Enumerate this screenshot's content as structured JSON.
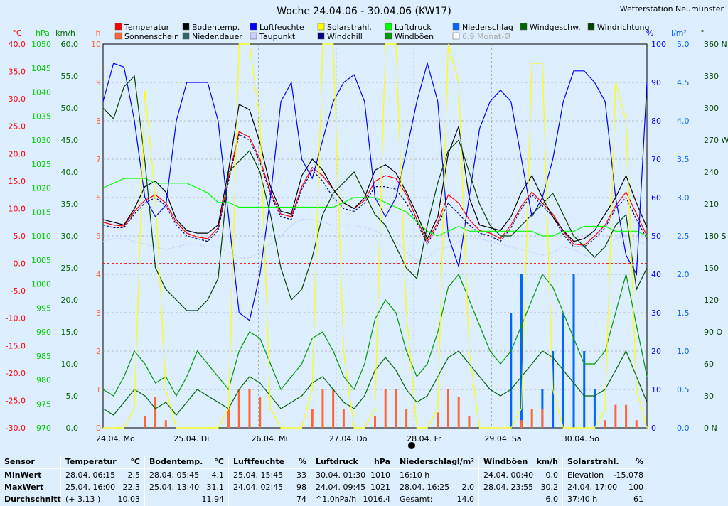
{
  "title": "Woche 24.04.06 - 30.04.06 (KW17)",
  "station": "Wetterstation Neumünster",
  "legend": [
    {
      "label": "Temperatur",
      "color": "#ff0000"
    },
    {
      "label": "Bodentemp.",
      "color": "#000000"
    },
    {
      "label": "Luftfeuchte",
      "color": "#0000ff"
    },
    {
      "label": "Solarstrahl.",
      "color": "#ffff00"
    },
    {
      "label": "Luftdruck",
      "color": "#00ff00"
    },
    {
      "label": "Niederschlag",
      "color": "#0066ff"
    },
    {
      "label": "Windgeschw.",
      "color": "#006600"
    },
    {
      "label": "Windrichtung",
      "color": "#004400"
    },
    {
      "label": "Sonnenschein",
      "color": "#ff6633"
    },
    {
      "label": "Nieder.dauer",
      "color": "#336666"
    },
    {
      "label": "Taupunkt",
      "color": "#ccccff"
    },
    {
      "label": "Windchill",
      "color": "#000080"
    },
    {
      "label": "Windböen",
      "color": "#009900"
    },
    {
      "label": "6.9 Monat-Ø",
      "color": "#ffffff"
    }
  ],
  "axes": {
    "temp": {
      "unit": "°C",
      "color": "#ff0000",
      "ticks": [
        "40.0",
        "35.0",
        "30.0",
        "25.0",
        "20.0",
        "15.0",
        "10.0",
        "5.0",
        "0.0",
        "-5.0",
        "-10.0",
        "-15.0",
        "-20.0",
        "-25.0",
        "-30.0"
      ]
    },
    "press": {
      "unit": "hPa",
      "color": "#00cc00",
      "ticks": [
        "1050",
        "1045",
        "1040",
        "1035",
        "1030",
        "1025",
        "1020",
        "1015",
        "1010",
        "1005",
        "1000",
        "995",
        "990",
        "985",
        "980",
        "975",
        "970"
      ]
    },
    "wind": {
      "unit": "km/h",
      "color": "#006600",
      "ticks": [
        "60.0",
        "55.0",
        "50.0",
        "45.0",
        "40.0",
        "35.0",
        "30.0",
        "25.0",
        "20.0",
        "15.0",
        "10.0",
        "5.0",
        "0.0"
      ]
    },
    "hours": {
      "unit": "h",
      "color": "#ff6633",
      "ticks": [
        "10",
        "9",
        "8",
        "7",
        "6",
        "5",
        "4",
        "3",
        "2",
        "1",
        "0"
      ]
    },
    "humid": {
      "unit": "%",
      "color": "#0000ff",
      "ticks": [
        "100",
        "90",
        "80",
        "70",
        "60",
        "50",
        "40",
        "30",
        "20",
        "10",
        "0"
      ]
    },
    "rain": {
      "unit": "l/m²",
      "color": "#0066ff",
      "ticks": [
        "5.0",
        "4.5",
        "4.0",
        "3.5",
        "3.0",
        "2.5",
        "2.0",
        "1.5",
        "1.0",
        "0.5",
        "0.0"
      ]
    },
    "dir": {
      "unit": "°",
      "color": "#004400",
      "ticks": [
        "360 N",
        "330",
        "300",
        "270 W",
        "240",
        "210",
        "180 S",
        "150",
        "120",
        "90 O",
        "60",
        "30",
        "0 N"
      ]
    }
  },
  "chart_data": {
    "type": "line",
    "title": "Woche 24.04.06 - 30.04.06 (KW17)",
    "x_labels": [
      "24.04. Mo",
      "25.04. Di",
      "26.04. Mi",
      "27.04. Do",
      "28.04. Fr",
      "29.04. Sa",
      "30.04. So"
    ],
    "temp_range": [
      -30,
      40
    ],
    "pressure_range": [
      970,
      1050
    ],
    "wind_range": [
      0,
      60
    ],
    "humidity_range": [
      0,
      100
    ],
    "rain_range": [
      0,
      5
    ],
    "direction_range": [
      0,
      360
    ],
    "hours_range": [
      0,
      10
    ],
    "series": [
      {
        "name": "Temperatur",
        "color": "#ff0000",
        "values": [
          7.5,
          7.0,
          6.8,
          9.5,
          11.5,
          12.5,
          11.0,
          7.5,
          5.5,
          4.8,
          4.5,
          6.5,
          15.5,
          24.0,
          23.0,
          19.0,
          13.0,
          9.0,
          8.5,
          14.0,
          17.5,
          16.0,
          13.5,
          11.0,
          10.0,
          11.5,
          15.0,
          16.0,
          15.5,
          12.5,
          8.0,
          4.0,
          7.5,
          12.5,
          11.0,
          8.0,
          6.0,
          5.5,
          4.5,
          7.0,
          10.5,
          13.0,
          11.0,
          9.0,
          5.8,
          3.5,
          3.3,
          5.0,
          7.0,
          10.5,
          13.0,
          9.0,
          5.0
        ]
      },
      {
        "name": "Windchill",
        "color": "#000080",
        "values": [
          7.0,
          6.5,
          6.5,
          9.0,
          11.0,
          12.0,
          10.5,
          7.0,
          5.0,
          4.5,
          4.0,
          6.0,
          15.0,
          23.5,
          22.5,
          18.5,
          12.5,
          8.5,
          8.0,
          13.5,
          17.0,
          15.0,
          12.0,
          10.0,
          9.5,
          11.0,
          14.0,
          14.0,
          13.5,
          11.0,
          7.5,
          3.5,
          7.0,
          11.0,
          9.0,
          7.0,
          5.5,
          5.0,
          4.0,
          6.5,
          10.0,
          12.5,
          10.5,
          8.5,
          5.3,
          3.0,
          3.0,
          4.5,
          6.5,
          10.0,
          12.0,
          8.0,
          4.5
        ]
      },
      {
        "name": "Bodentemp.",
        "color": "#000000",
        "values": [
          8.0,
          7.5,
          7.0,
          10.0,
          14.0,
          15.0,
          13.0,
          8.0,
          6.0,
          5.5,
          5.5,
          7.0,
          17.0,
          29.0,
          28.0,
          22.0,
          14.0,
          9.5,
          9.0,
          16.0,
          19.0,
          17.0,
          13.5,
          11.0,
          10.0,
          12.0,
          17.0,
          18.0,
          16.5,
          13.0,
          9.0,
          4.5,
          8.5,
          20.0,
          25.0,
          12.0,
          7.0,
          6.5,
          6.0,
          8.5,
          13.0,
          16.0,
          12.0,
          8.5,
          6.0,
          4.0,
          4.5,
          6.0,
          9.0,
          12.0,
          16.0,
          11.0,
          6.5
        ]
      },
      {
        "name": "Taupunkt",
        "color": "#ccccff",
        "values": [
          4.0,
          4.5,
          4.5,
          4.0,
          3.5,
          3.0,
          2.5,
          3.0,
          3.5,
          3.5,
          3.0,
          3.0,
          2.0,
          1.0,
          1.0,
          2.0,
          3.5,
          5.0,
          7.0,
          8.0,
          8.0,
          7.5,
          7.0,
          7.0,
          7.0,
          6.5,
          6.0,
          5.0,
          4.0,
          2.0,
          0.5,
          1.0,
          2.5,
          3.0,
          4.0,
          4.5,
          4.5,
          4.0,
          3.5,
          3.0,
          2.5,
          2.0,
          1.5,
          2.0,
          3.0,
          2.5,
          1.5,
          1.0,
          3.0,
          4.5,
          5.0,
          4.0,
          3.5
        ]
      },
      {
        "name": "Luftfeuchte",
        "color": "#0000ff",
        "values": [
          85,
          95,
          94,
          80,
          60,
          55,
          58,
          80,
          90,
          90,
          90,
          80,
          55,
          30,
          28,
          40,
          60,
          85,
          90,
          70,
          65,
          75,
          85,
          90,
          92,
          85,
          60,
          55,
          60,
          72,
          85,
          95,
          85,
          50,
          42,
          60,
          78,
          85,
          88,
          85,
          70,
          55,
          60,
          70,
          85,
          93,
          93,
          90,
          85,
          60,
          45,
          40,
          90
        ]
      },
      {
        "name": "Luftdruck",
        "color": "#00ff00",
        "values": [
          1020,
          1021,
          1022,
          1022,
          1022,
          1021,
          1021,
          1021,
          1021,
          1020,
          1019,
          1017,
          1017,
          1016,
          1016,
          1016,
          1016,
          1016,
          1016,
          1016,
          1016,
          1016,
          1016,
          1017,
          1018,
          1018,
          1018,
          1017,
          1016,
          1015,
          1013,
          1011,
          1010,
          1011,
          1012,
          1011,
          1011,
          1011,
          1011,
          1011,
          1011,
          1011,
          1010,
          1010,
          1011,
          1011,
          1012,
          1012,
          1012,
          1011,
          1011,
          1011,
          1010
        ]
      },
      {
        "name": "Windgeschw.",
        "color": "#006600",
        "values": [
          3,
          2,
          4,
          6,
          5,
          3,
          4,
          2,
          4,
          6,
          5,
          4,
          3,
          6,
          8,
          7,
          5,
          3,
          4,
          5,
          7,
          8,
          6,
          4,
          3,
          5,
          9,
          11,
          9,
          6,
          4,
          5,
          8,
          11,
          12,
          10,
          8,
          6,
          5,
          6,
          8,
          10,
          12,
          11,
          9,
          7,
          5,
          5,
          6,
          9,
          12,
          8,
          4
        ]
      },
      {
        "name": "Windböen",
        "color": "#009900",
        "values": [
          6,
          5,
          8,
          12,
          10,
          7,
          8,
          5,
          8,
          12,
          10,
          8,
          6,
          12,
          15,
          14,
          10,
          6,
          8,
          10,
          14,
          15,
          12,
          8,
          6,
          10,
          17,
          20,
          18,
          12,
          8,
          10,
          15,
          22,
          24,
          20,
          16,
          12,
          10,
          12,
          16,
          20,
          24,
          22,
          18,
          14,
          10,
          10,
          12,
          18,
          24,
          16,
          8
        ]
      },
      {
        "name": "Windrichtung",
        "color": "#004400",
        "values": [
          300,
          290,
          320,
          330,
          250,
          150,
          130,
          120,
          110,
          110,
          120,
          140,
          240,
          250,
          260,
          240,
          200,
          150,
          120,
          130,
          160,
          200,
          220,
          230,
          240,
          220,
          200,
          190,
          170,
          150,
          140,
          190,
          230,
          260,
          270,
          240,
          210,
          190,
          180,
          180,
          190,
          200,
          210,
          220,
          200,
          180,
          170,
          160,
          170,
          190,
          200,
          130,
          150
        ]
      },
      {
        "name": "Solarstrahl.",
        "color": "#ffff00",
        "values": [
          0,
          0,
          0,
          5,
          88,
          60,
          10,
          0,
          0,
          0,
          0,
          0,
          5,
          100,
          100,
          80,
          5,
          0,
          0,
          0,
          10,
          100,
          100,
          20,
          0,
          0,
          5,
          100,
          100,
          30,
          0,
          0,
          5,
          100,
          90,
          20,
          0,
          0,
          0,
          0,
          5,
          95,
          95,
          10,
          0,
          0,
          0,
          0,
          5,
          90,
          80,
          10,
          0
        ]
      },
      {
        "name": "Niederschlag",
        "color": "#0066ff",
        "values": [
          0,
          0,
          0,
          0,
          0,
          0,
          0,
          0,
          0,
          0,
          0,
          0,
          0,
          0,
          0,
          0,
          0,
          0,
          0,
          0,
          0,
          0,
          0,
          0,
          0,
          0,
          0,
          0,
          0,
          0,
          0,
          0,
          0,
          0,
          0,
          0,
          0,
          0,
          0,
          1.5,
          2.0,
          0,
          0.5,
          1.0,
          1.5,
          2.0,
          1.0,
          0.5,
          0,
          0,
          0,
          0,
          0
        ]
      },
      {
        "name": "Sonnenschein",
        "color": "#ff6633",
        "values": [
          0,
          0,
          0,
          0,
          0.3,
          0.8,
          0.2,
          0,
          0,
          0,
          0,
          0,
          0.5,
          1.0,
          1.0,
          0.8,
          0,
          0,
          0,
          0,
          0.5,
          1.0,
          1.0,
          0.5,
          0,
          0,
          0.3,
          1.0,
          1.0,
          0.5,
          0,
          0,
          0.4,
          1.0,
          0.8,
          0.3,
          0,
          0,
          0,
          0,
          0.2,
          0.5,
          0.5,
          0,
          0,
          0,
          0,
          0,
          0.2,
          0.6,
          0.6,
          0.2,
          0
        ]
      }
    ]
  },
  "stats": [
    {
      "header": "Sensor",
      "unit": "",
      "rows": [
        [
          "MinWert",
          ""
        ],
        [
          "MaxWert",
          ""
        ],
        [
          "Durchschnitt",
          ""
        ]
      ]
    },
    {
      "header": "Temperatur",
      "unit": "°C",
      "rows": [
        [
          "28.04.  06:15",
          "2.5"
        ],
        [
          "25.04.  16:00",
          "22.3"
        ],
        [
          "(+ 3.13 )",
          "10.03"
        ]
      ]
    },
    {
      "header": "Bodentemp.",
      "unit": "°C",
      "rows": [
        [
          "28.04.  05:45",
          "4.1"
        ],
        [
          "25.04.  13:40",
          "31.1"
        ],
        [
          "",
          "11.94"
        ]
      ]
    },
    {
      "header": "Luftfeuchte",
      "unit": "%",
      "rows": [
        [
          "25.04.  15:45",
          "33"
        ],
        [
          "24.04.  02:45",
          "98"
        ],
        [
          "",
          "74"
        ]
      ]
    },
    {
      "header": "Luftdruck",
      "unit": "hPa",
      "rows": [
        [
          "30.04.  01:30",
          "1010"
        ],
        [
          "24.04.  09:45",
          "1021"
        ],
        [
          "^1.0hPa/h",
          "1016.4"
        ]
      ]
    },
    {
      "header": "Niederschlag",
      "unit": "l/m²",
      "rows": [
        [
          "16:10 h",
          ""
        ],
        [
          "28.04.  16:25",
          "2.0"
        ],
        [
          "Gesamt:",
          "14.0"
        ]
      ]
    },
    {
      "header": "Windböen",
      "unit": "km/h",
      "rows": [
        [
          "24.04.  00:40",
          "0.0"
        ],
        [
          "28.04.  23:55",
          "30.2"
        ],
        [
          "",
          "6.0"
        ]
      ]
    },
    {
      "header": "Solarstrahl.",
      "unit": "%",
      "rows": [
        [
          "Elevation",
          "-15.078"
        ],
        [
          "24.04.  17:00",
          "100"
        ],
        [
          "37:40 h",
          "61"
        ]
      ]
    }
  ]
}
